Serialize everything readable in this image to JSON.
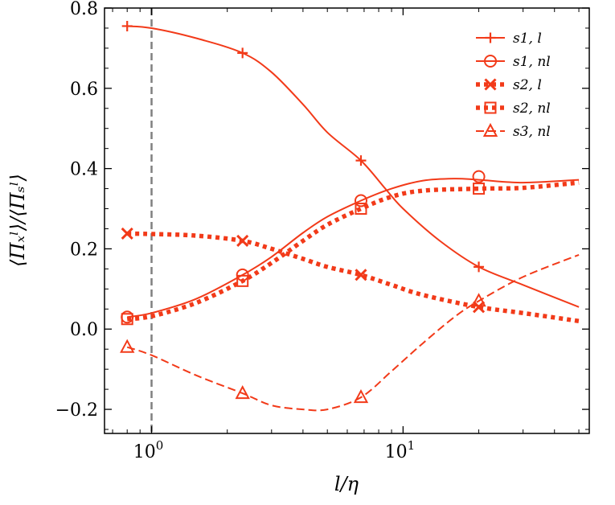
{
  "chart_data": {
    "type": "line",
    "xscale": "log",
    "xlim": [
      0.65,
      55
    ],
    "ylim": [
      -0.26,
      0.8
    ],
    "xlabel": "l/η",
    "ylabel": "⟨Πₓˡ⟩/⟨Πₛˡ⟩",
    "color": "#f23a19",
    "yticks": [
      {
        "value": -0.2,
        "label": "−0.2"
      },
      {
        "value": 0.0,
        "label": "0.0"
      },
      {
        "value": 0.2,
        "label": "0.2"
      },
      {
        "value": 0.4,
        "label": "0.4"
      },
      {
        "value": 0.6,
        "label": "0.6"
      },
      {
        "value": 0.8,
        "label": "0.8"
      }
    ],
    "xticks_major": [
      {
        "value": 1,
        "base": "10",
        "exp": "0"
      },
      {
        "value": 10,
        "base": "10",
        "exp": "1"
      }
    ],
    "vline": {
      "x": 1.0,
      "color": "#808080",
      "style": "dashed"
    },
    "legend_position": "top-right",
    "series": [
      {
        "name": "s1, l",
        "style": "solid",
        "marker": "plus",
        "markers": [
          [
            0.8,
            0.755
          ],
          [
            2.3,
            0.688
          ],
          [
            6.8,
            0.42
          ],
          [
            20,
            0.155
          ]
        ],
        "curve": [
          [
            0.8,
            0.755
          ],
          [
            1.0,
            0.75
          ],
          [
            1.5,
            0.725
          ],
          [
            2.3,
            0.688
          ],
          [
            3.0,
            0.64
          ],
          [
            4.0,
            0.56
          ],
          [
            5.0,
            0.49
          ],
          [
            6.8,
            0.42
          ],
          [
            8.5,
            0.35
          ],
          [
            10,
            0.3
          ],
          [
            14,
            0.22
          ],
          [
            20,
            0.155
          ],
          [
            30,
            0.11
          ],
          [
            50,
            0.055
          ]
        ]
      },
      {
        "name": "s1, nl",
        "style": "solid",
        "marker": "circle",
        "markers": [
          [
            0.8,
            0.03
          ],
          [
            2.3,
            0.135
          ],
          [
            6.8,
            0.32
          ],
          [
            20,
            0.38
          ]
        ],
        "curve": [
          [
            0.8,
            0.03
          ],
          [
            1.0,
            0.04
          ],
          [
            1.5,
            0.075
          ],
          [
            2.3,
            0.135
          ],
          [
            3.0,
            0.18
          ],
          [
            4.0,
            0.24
          ],
          [
            5.0,
            0.28
          ],
          [
            6.8,
            0.32
          ],
          [
            9,
            0.35
          ],
          [
            12,
            0.37
          ],
          [
            16,
            0.375
          ],
          [
            20,
            0.372
          ],
          [
            30,
            0.365
          ],
          [
            50,
            0.372
          ]
        ]
      },
      {
        "name": "s2, l",
        "style": "dotted",
        "marker": "x",
        "markers": [
          [
            0.8,
            0.238
          ],
          [
            2.3,
            0.22
          ],
          [
            6.8,
            0.135
          ],
          [
            20,
            0.055
          ]
        ],
        "curve": [
          [
            0.8,
            0.238
          ],
          [
            1.0,
            0.237
          ],
          [
            1.5,
            0.233
          ],
          [
            2.3,
            0.22
          ],
          [
            3.0,
            0.2
          ],
          [
            4.0,
            0.175
          ],
          [
            5.0,
            0.155
          ],
          [
            6.8,
            0.135
          ],
          [
            9,
            0.11
          ],
          [
            12,
            0.085
          ],
          [
            20,
            0.055
          ],
          [
            30,
            0.04
          ],
          [
            50,
            0.02
          ]
        ]
      },
      {
        "name": "s2, nl",
        "style": "dotted",
        "marker": "square",
        "markers": [
          [
            0.8,
            0.025
          ],
          [
            2.3,
            0.12
          ],
          [
            6.8,
            0.3
          ],
          [
            20,
            0.35
          ]
        ],
        "curve": [
          [
            0.8,
            0.025
          ],
          [
            1.0,
            0.032
          ],
          [
            1.5,
            0.065
          ],
          [
            2.3,
            0.12
          ],
          [
            3.0,
            0.165
          ],
          [
            4.0,
            0.22
          ],
          [
            5.0,
            0.26
          ],
          [
            6.8,
            0.3
          ],
          [
            9,
            0.33
          ],
          [
            12,
            0.345
          ],
          [
            20,
            0.35
          ],
          [
            30,
            0.352
          ],
          [
            50,
            0.365
          ]
        ]
      },
      {
        "name": "s3, nl",
        "style": "dashed",
        "marker": "triangle",
        "markers": [
          [
            0.8,
            -0.045
          ],
          [
            2.3,
            -0.16
          ],
          [
            6.8,
            -0.17
          ],
          [
            20,
            0.07
          ]
        ],
        "curve": [
          [
            0.8,
            -0.045
          ],
          [
            1.0,
            -0.065
          ],
          [
            1.5,
            -0.115
          ],
          [
            2.3,
            -0.16
          ],
          [
            3.0,
            -0.19
          ],
          [
            4.0,
            -0.2
          ],
          [
            5.0,
            -0.2
          ],
          [
            6.8,
            -0.17
          ],
          [
            9,
            -0.105
          ],
          [
            12,
            -0.035
          ],
          [
            16,
            0.03
          ],
          [
            20,
            0.07
          ],
          [
            30,
            0.13
          ],
          [
            50,
            0.185
          ]
        ]
      }
    ]
  }
}
